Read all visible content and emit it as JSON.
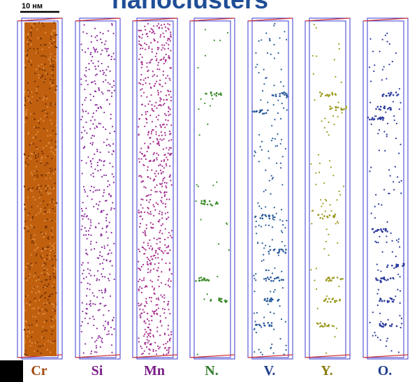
{
  "header": {
    "title": "nanoclusters",
    "scale": "10 нм"
  },
  "columns": [
    {
      "label": "Cr"
    },
    {
      "label": "Si"
    },
    {
      "label": "Mn"
    },
    {
      "label": "N."
    },
    {
      "label": "V."
    },
    {
      "label": "Y."
    },
    {
      "label": "O."
    }
  ]
}
